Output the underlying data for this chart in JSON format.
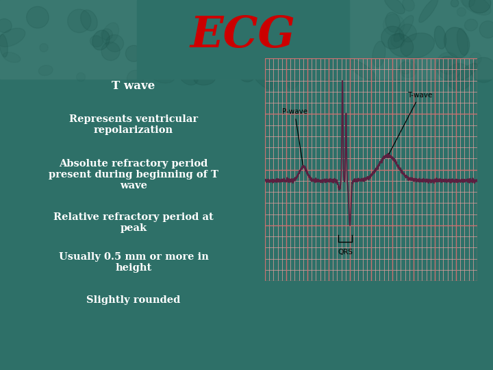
{
  "title": "ECG",
  "title_color": "#cc0000",
  "bg_color": "#2e7068",
  "damask_bg_color": "#3a7870",
  "center_block_color": "#2e7068",
  "text_color": "#ffffff",
  "bullet_points": [
    "T wave",
    "Represents ventricular\nrepolarization",
    "Absolute refractory period\npresent during beginning of T\nwave",
    "Relative refractory period at\npeak",
    "Usually 0.5 mm or more in\nheight",
    "Slightly rounded"
  ],
  "bullet_fontsize": [
    12,
    10.5,
    10.5,
    10.5,
    10.5,
    10.5
  ],
  "bullet_bold": [
    true,
    true,
    true,
    true,
    true,
    true
  ],
  "ecg_grid_bg": "#fce8e8",
  "ecg_line_color": "#5a2040",
  "ecg_grid_minor": "#e8a0a0",
  "ecg_grid_major": "#cc7070",
  "ecg_label_color": "#000000"
}
